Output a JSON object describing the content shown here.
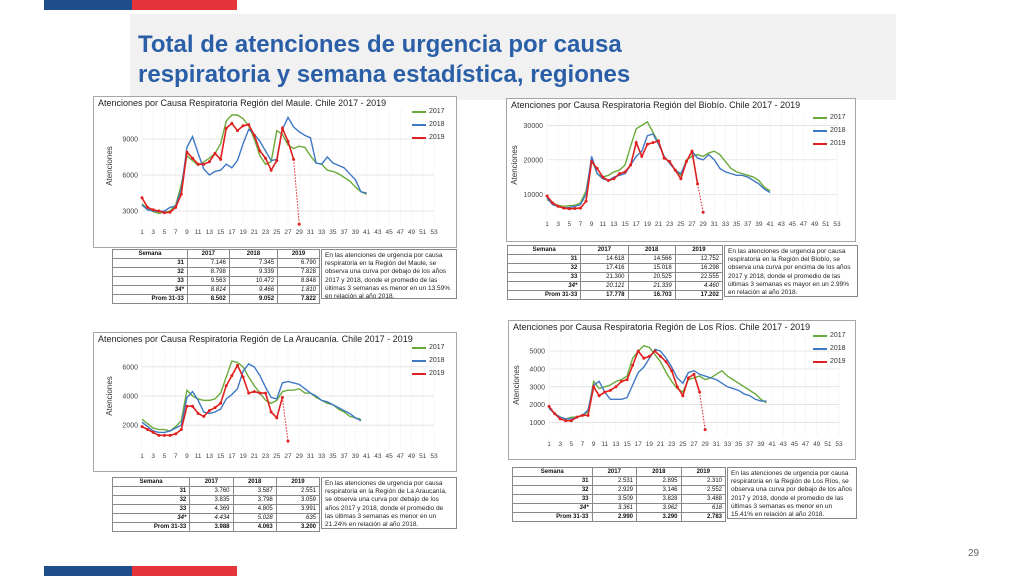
{
  "slide": {
    "title_line1": "Total de atenciones de urgencia por causa",
    "title_line2": "respiratoria y semana estadística, regiones",
    "page_number": "29",
    "colors": {
      "title": "#2a5fa8",
      "flag_blue": "#1f4e8c",
      "flag_red": "#e5343a"
    }
  },
  "legend": {
    "s2017": "2017",
    "s2018": "2018",
    "s2019": "2019",
    "colors": {
      "2017": "#6aaa3a",
      "2018": "#3f78c4",
      "2019": "#e02020"
    }
  },
  "chart_data": [
    {
      "type": "line",
      "title": "Atenciones por Causa Respiratoria Región del Maule. Chile 2017 - 2019",
      "ylabel": "Atenciones",
      "ylim": [
        2000,
        11500
      ],
      "yticks": [
        3000,
        6000,
        9000
      ],
      "x_ticks": [
        "1",
        "3",
        "5",
        "7",
        "9",
        "11",
        "13",
        "15",
        "17",
        "19",
        "21",
        "23",
        "25",
        "27",
        "29",
        "31",
        "33",
        "35",
        "37",
        "39",
        "41",
        "43",
        "45",
        "47",
        "49",
        "51",
        "53"
      ],
      "series": [
        {
          "name": "2017",
          "color": "#6aaa3a",
          "values": [
            3600,
            3200,
            2950,
            2800,
            2900,
            3000,
            3500,
            5200,
            7600,
            7200,
            6800,
            7100,
            7400,
            7800,
            8600,
            10500,
            11000,
            11000,
            10700,
            10100,
            9000,
            7600,
            6900,
            7100,
            9700,
            9400,
            8500,
            8200,
            8400,
            8300,
            7600,
            7000,
            6900,
            6400,
            6300,
            6100,
            5800,
            5500,
            5000,
            4600,
            4400
          ]
        },
        {
          "name": "2018",
          "color": "#3f78c4",
          "values": [
            3500,
            3100,
            3000,
            2950,
            3000,
            3300,
            3400,
            4800,
            8300,
            9200,
            7800,
            6500,
            6000,
            6300,
            6400,
            6900,
            6600,
            7200,
            8600,
            9800,
            9400,
            8800,
            8000,
            7200,
            7300,
            9800,
            10800,
            10000,
            9600,
            9300,
            9100,
            7000,
            6900,
            7500,
            7000,
            6800,
            6600,
            6100,
            5600,
            4600,
            4500
          ]
        },
        {
          "name": "2019",
          "color": "#e02020",
          "values": [
            4100,
            3300,
            3100,
            3000,
            2850,
            2900,
            3300,
            4400,
            7900,
            7400,
            6900,
            6900,
            7100,
            7800,
            7300,
            9900,
            10300,
            9700,
            10100,
            10200,
            9300,
            8000,
            7400,
            6400,
            7200,
            9900,
            8800,
            7300,
            1900
          ]
        }
      ]
    },
    {
      "type": "line",
      "title": "Atenciones por Causa Respiratoria Región del Biobío. Chile 2017 - 2019",
      "ylabel": "Atenciones",
      "ylim": [
        4000,
        33000
      ],
      "yticks": [
        10000,
        20000,
        30000
      ],
      "x_ticks": [
        "1",
        "3",
        "5",
        "7",
        "9",
        "11",
        "13",
        "15",
        "17",
        "19",
        "21",
        "23",
        "25",
        "27",
        "29",
        "31",
        "33",
        "35",
        "37",
        "39",
        "41",
        "43",
        "45",
        "47",
        "49",
        "51",
        "53"
      ],
      "series": [
        {
          "name": "2017",
          "color": "#6aaa3a",
          "values": [
            8500,
            7500,
            6800,
            6500,
            6700,
            6800,
            7500,
            11000,
            20000,
            16000,
            15000,
            15500,
            16500,
            17000,
            18500,
            24000,
            29000,
            30000,
            31000,
            28000,
            25000,
            21000,
            19000,
            17000,
            15500,
            20000,
            21000,
            21500,
            21000,
            22000,
            22500,
            21500,
            19500,
            17500,
            16500,
            16000,
            15500,
            15000,
            14000,
            12000,
            11000
          ]
        },
        {
          "name": "2018",
          "color": "#3f78c4",
          "values": [
            9000,
            7000,
            6500,
            6000,
            6200,
            6500,
            7000,
            10000,
            21000,
            16000,
            14500,
            14000,
            15000,
            15500,
            16000,
            18500,
            21000,
            22500,
            27000,
            27500,
            24500,
            21000,
            19000,
            17000,
            16000,
            19500,
            22500,
            20500,
            20000,
            21500,
            20000,
            17500,
            16500,
            16000,
            15500,
            15500,
            15000,
            14000,
            13000,
            11500,
            10500
          ]
        },
        {
          "name": "2019",
          "color": "#e02020",
          "values": [
            9500,
            7500,
            6500,
            6000,
            5800,
            5900,
            6000,
            8000,
            19500,
            17500,
            15000,
            14000,
            14500,
            16000,
            16500,
            18500,
            25000,
            21000,
            24500,
            25000,
            25500,
            20500,
            19500,
            17000,
            14500,
            19500,
            22500,
            13000,
            4800
          ]
        }
      ]
    },
    {
      "type": "line",
      "title": "Atenciones por Causa Respiratoria Región de La Araucanía. Chile 2017 - 2019",
      "ylabel": "Atenciones",
      "ylim": [
        500,
        7500
      ],
      "yticks": [
        2000,
        4000,
        6000
      ],
      "x_ticks": [
        "1",
        "3",
        "5",
        "7",
        "9",
        "11",
        "13",
        "15",
        "17",
        "19",
        "21",
        "23",
        "25",
        "27",
        "29",
        "31",
        "33",
        "35",
        "37",
        "39",
        "41",
        "43",
        "45",
        "47",
        "49",
        "51",
        "53"
      ],
      "series": [
        {
          "name": "2017",
          "color": "#6aaa3a",
          "values": [
            2400,
            2100,
            1800,
            1700,
            1700,
            1600,
            1900,
            2300,
            4400,
            4000,
            3800,
            3700,
            3700,
            3800,
            4200,
            5300,
            6400,
            6300,
            6000,
            5300,
            4700,
            4200,
            3700,
            3500,
            3700,
            4300,
            4400,
            4400,
            4500,
            4200,
            4200,
            3900,
            3700,
            3500,
            3400,
            3100,
            2900,
            2600,
            2500,
            2400
          ]
        },
        {
          "name": "2018",
          "color": "#3f78c4",
          "values": [
            2200,
            1900,
            1600,
            1500,
            1500,
            1600,
            1800,
            2000,
            3900,
            4300,
            3700,
            2900,
            2800,
            2900,
            3100,
            3800,
            4100,
            4500,
            5700,
            6200,
            6000,
            5400,
            4600,
            3900,
            3800,
            4900,
            5000,
            4900,
            4800,
            4500,
            4200,
            4000,
            3700,
            3600,
            3400,
            3200,
            3000,
            2800,
            2500,
            2300
          ]
        },
        {
          "name": "2019",
          "color": "#e02020",
          "values": [
            1900,
            1700,
            1500,
            1300,
            1300,
            1300,
            1400,
            1700,
            3300,
            3300,
            2800,
            2600,
            3000,
            3200,
            3500,
            4700,
            5400,
            6100,
            5300,
            4200,
            4300,
            4200,
            4200,
            2900,
            2500,
            3900,
            900
          ]
        }
      ]
    },
    {
      "type": "line",
      "title": "Atenciones por Causa Respiratoria Región de Los Ríos. Chile 2017 - 2019",
      "ylabel": "Atenciones",
      "ylim": [
        300,
        5900
      ],
      "yticks": [
        1000,
        2000,
        3000,
        4000,
        5000
      ],
      "x_ticks": [
        "1",
        "3",
        "5",
        "7",
        "9",
        "11",
        "13",
        "15",
        "17",
        "19",
        "21",
        "23",
        "25",
        "27",
        "29",
        "31",
        "33",
        "35",
        "37",
        "39",
        "41",
        "43",
        "45",
        "47",
        "49",
        "51",
        "53"
      ],
      "series": [
        {
          "name": "2017",
          "color": "#6aaa3a",
          "values": [
            1800,
            1500,
            1300,
            1200,
            1300,
            1300,
            1400,
            1600,
            3300,
            2900,
            3000,
            3100,
            3300,
            3400,
            3600,
            4600,
            5000,
            5300,
            5200,
            4800,
            4400,
            3800,
            3300,
            2900,
            2700,
            3400,
            3500,
            3600,
            3400,
            3500,
            3700,
            3900,
            3600,
            3400,
            3200,
            3000,
            2800,
            2600,
            2300,
            2100
          ]
        },
        {
          "name": "2018",
          "color": "#3f78c4",
          "values": [
            1800,
            1500,
            1300,
            1200,
            1200,
            1300,
            1400,
            1700,
            3100,
            3300,
            2700,
            2300,
            2300,
            2300,
            2400,
            3100,
            3800,
            4100,
            4600,
            5100,
            5000,
            4600,
            4100,
            3500,
            3200,
            3800,
            3900,
            3700,
            3600,
            3500,
            3400,
            3200,
            3000,
            2900,
            2800,
            2600,
            2500,
            2300,
            2200,
            2200
          ]
        },
        {
          "name": "2019",
          "color": "#e02020",
          "values": [
            1900,
            1500,
            1200,
            1100,
            1100,
            1300,
            1400,
            1400,
            3000,
            2500,
            2700,
            2800,
            3000,
            3300,
            3400,
            4200,
            5000,
            4600,
            4700,
            5000,
            4700,
            4400,
            3900,
            3000,
            2500,
            3500,
            3700,
            2700,
            600
          ]
        }
      ]
    }
  ],
  "tables": [
    {
      "headers": [
        "Semana",
        "2017",
        "2018",
        "2019"
      ],
      "rows": [
        [
          "31",
          "7.146",
          "7.345",
          "6.790"
        ],
        [
          "32",
          "8.798",
          "9.339",
          "7.828"
        ],
        [
          "33",
          "9.563",
          "10.472",
          "8.848"
        ],
        [
          "34*",
          "8.814",
          "9.466",
          "1.810"
        ],
        [
          "Prom 31-33",
          "8.502",
          "9.052",
          "7.822"
        ]
      ],
      "note": "En las atenciones de urgencia por causa respiratoria en la Región del Maule, se observa una curva por debajo de los años 2017 y 2018, donde el promedio de las últimas 3 semanas es menor en un 13.59% en relación al año 2018."
    },
    {
      "headers": [
        "Semana",
        "2017",
        "2018",
        "2019"
      ],
      "rows": [
        [
          "31",
          "14.618",
          "14.566",
          "12.752"
        ],
        [
          "32",
          "17.416",
          "15.018",
          "16.298"
        ],
        [
          "33",
          "21.300",
          "20.525",
          "22.555"
        ],
        [
          "34*",
          "20.121",
          "21.339",
          "4.460"
        ],
        [
          "Prom 31-33",
          "17.778",
          "16.703",
          "17.202"
        ]
      ],
      "note": "En las atenciones de urgencia por causa respiratoria en la Región del Biobío, se observa una curva por encima de los años 2017 y 2018, donde el promedio de las últimas 3 semanas es mayor en un 2.99% en relación al año 2018."
    },
    {
      "headers": [
        "Semana",
        "2017",
        "2018",
        "2019"
      ],
      "rows": [
        [
          "31",
          "3.760",
          "3.587",
          "2.551"
        ],
        [
          "32",
          "3.835",
          "3.798",
          "3.059"
        ],
        [
          "33",
          "4.369",
          "4.805",
          "3.991"
        ],
        [
          "34*",
          "4.434",
          "5.028",
          "635"
        ],
        [
          "Prom 31-33",
          "3.988",
          "4.063",
          "3.200"
        ]
      ],
      "note": "En las atenciones de urgencia por causa respiratoria en la Región de La Araucanía, se observa una curva por debajo de los años 2017 y 2018, donde el promedio de las últimas 3 semanas es menor en un 21.24% en relación al año 2018."
    },
    {
      "headers": [
        "Semana",
        "2017",
        "2018",
        "2019"
      ],
      "rows": [
        [
          "31",
          "2.531",
          "2.895",
          "2.310"
        ],
        [
          "32",
          "2.929",
          "3.146",
          "2.552"
        ],
        [
          "33",
          "3.509",
          "3.828",
          "3.488"
        ],
        [
          "34*",
          "3.361",
          "3.962",
          "618"
        ],
        [
          "Prom 31-33",
          "2.990",
          "3.290",
          "2.783"
        ]
      ],
      "note": "En las atenciones de urgencia por causa respiratoria en la Región de Los Ríos, se observa una curva por debajo de los años 2017 y 2018, donde el promedio de las últimas 3 semanas es menor en un 15.41% en relación al año 2018."
    }
  ]
}
